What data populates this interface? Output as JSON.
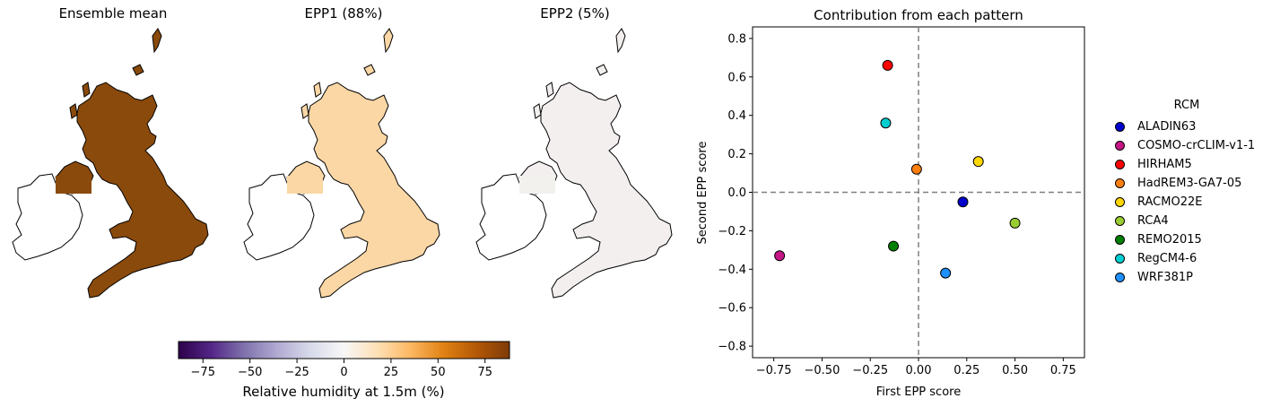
{
  "maps": [
    {
      "title": "Ensemble mean",
      "fill": "#8a4a0c",
      "ireland_fill": "#8a4a0c"
    },
    {
      "title": "EPP1 (88%)",
      "fill": "#fbd7a5",
      "ireland_fill": "#fbd7a5"
    },
    {
      "title": "EPP2 (5%)",
      "fill": "#f2efee",
      "ireland_fill": "#f3f1ee"
    }
  ],
  "colorbar": {
    "label": "Relative humidity at 1.5m (%)",
    "ticks": [
      "−75",
      "−50",
      "−25",
      "0",
      "25",
      "50",
      "75"
    ],
    "tick_values": [
      -75,
      -50,
      -25,
      0,
      25,
      50,
      75
    ],
    "range": [
      -88,
      88
    ],
    "stops": [
      "#2d004b",
      "#542788",
      "#8073ac",
      "#b2abd2",
      "#d8daeb",
      "#f7f7f7",
      "#fee0b6",
      "#fdb863",
      "#e08214",
      "#b35806",
      "#7f3b08"
    ]
  },
  "chart_data": {
    "type": "scatter",
    "title": "Contribution from each pattern",
    "xlabel": "First EPP score",
    "ylabel": "Second EPP score",
    "xlim": [
      -0.86,
      0.86
    ],
    "ylim": [
      -0.86,
      0.86
    ],
    "xticks": [
      -0.75,
      -0.5,
      -0.25,
      0.0,
      0.25,
      0.5,
      0.75
    ],
    "xtick_labels": [
      "−0.75",
      "−0.50",
      "−0.25",
      "0.00",
      "0.25",
      "0.50",
      "0.75"
    ],
    "yticks": [
      -0.8,
      -0.6,
      -0.4,
      -0.2,
      0.0,
      0.2,
      0.4,
      0.6,
      0.8
    ],
    "ytick_labels": [
      "−0.8",
      "−0.6",
      "−0.4",
      "−0.2",
      "0.0",
      "0.2",
      "0.4",
      "0.6",
      "0.8"
    ],
    "legend_title": "RCM",
    "legend_position": "outside-right",
    "reference_lines": {
      "x": 0,
      "y": 0,
      "style": "dashed",
      "color": "#808080"
    },
    "series": [
      {
        "name": "ALADIN63",
        "color": "#0000cd",
        "x": 0.23,
        "y": -0.05
      },
      {
        "name": "COSMO-crCLIM-v1-1",
        "color": "#c71585",
        "x": -0.72,
        "y": -0.33
      },
      {
        "name": "HIRHAM5",
        "color": "#ff0000",
        "x": -0.16,
        "y": 0.66
      },
      {
        "name": "HadREM3-GA7-05",
        "color": "#ff7f0e",
        "x": -0.01,
        "y": 0.12
      },
      {
        "name": "RACMO22E",
        "color": "#ffd700",
        "x": 0.31,
        "y": 0.16
      },
      {
        "name": "RCA4",
        "color": "#9acd32",
        "x": 0.5,
        "y": -0.16
      },
      {
        "name": "REMO2015",
        "color": "#008000",
        "x": -0.13,
        "y": -0.28
      },
      {
        "name": "RegCM4-6",
        "color": "#00ced1",
        "x": -0.17,
        "y": 0.36
      },
      {
        "name": "WRF381P",
        "color": "#1e90ff",
        "x": 0.14,
        "y": -0.42
      }
    ]
  }
}
